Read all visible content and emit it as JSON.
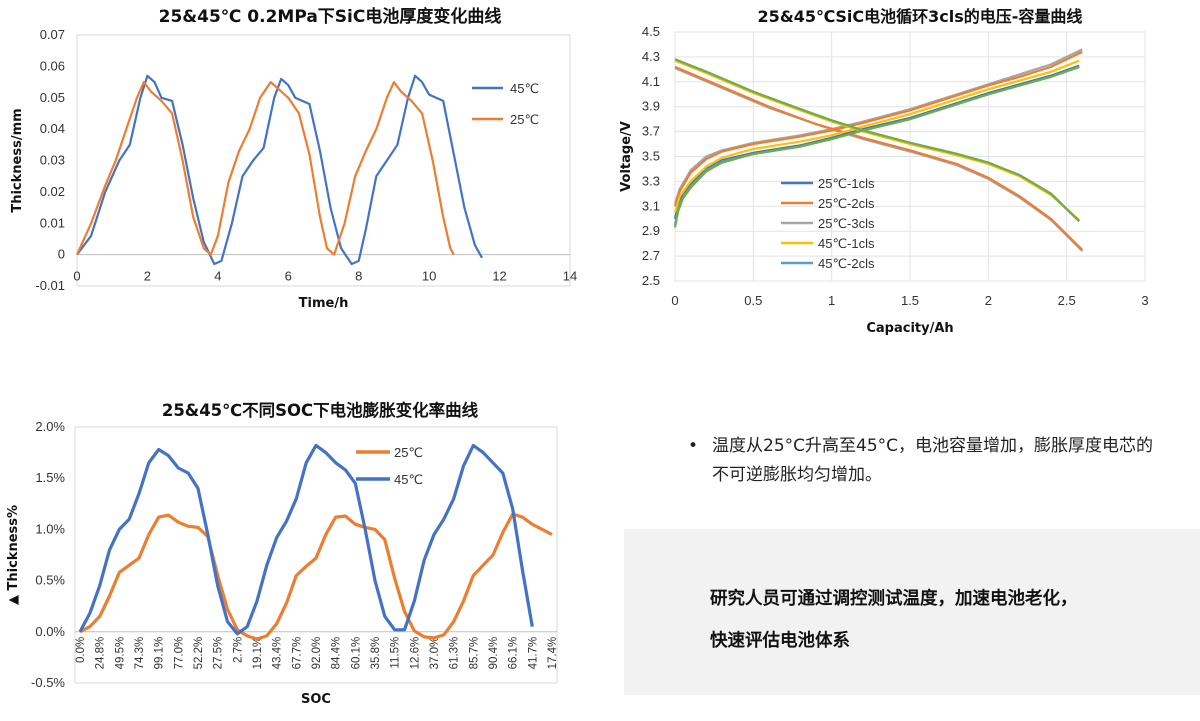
{
  "colors": {
    "blue": "#4472c4",
    "orange": "#ed7d31",
    "gray": "#a5a5a5",
    "yellow": "#ffc000",
    "lightblue": "#5b9bd5",
    "green": "#70ad47"
  },
  "chart_data": [
    {
      "type": "line",
      "title": "25&45℃ 0.2MPa下SiC电池厚度变化曲线",
      "xlabel": "Time/h",
      "ylabel": "Thickness/mm",
      "xlim": [
        0,
        14
      ],
      "ylim": [
        -0.01,
        0.07
      ],
      "xticks": [
        "0",
        "2",
        "4",
        "6",
        "8",
        "10",
        "12",
        "14"
      ],
      "yticks": [
        "-0.01",
        "0",
        "0.01",
        "0.02",
        "0.03",
        "0.04",
        "0.05",
        "0.06",
        "0.07"
      ],
      "legend_position": "right",
      "series": [
        {
          "name": "45℃",
          "color": "#4472c4",
          "x": [
            0,
            0.4,
            0.8,
            1.2,
            1.5,
            1.8,
            2.0,
            2.2,
            2.4,
            2.7,
            3.0,
            3.3,
            3.6,
            3.9,
            4.1,
            4.4,
            4.7,
            5.0,
            5.3,
            5.6,
            5.8,
            6.0,
            6.2,
            6.6,
            6.9,
            7.2,
            7.5,
            7.8,
            8.0,
            8.2,
            8.5,
            8.8,
            9.1,
            9.4,
            9.6,
            9.8,
            10.0,
            10.4,
            10.7,
            11.0,
            11.3,
            11.5
          ],
          "y": [
            0,
            0.006,
            0.02,
            0.03,
            0.035,
            0.05,
            0.057,
            0.055,
            0.05,
            0.049,
            0.035,
            0.018,
            0.004,
            -0.003,
            -0.002,
            0.01,
            0.025,
            0.03,
            0.034,
            0.05,
            0.056,
            0.054,
            0.05,
            0.048,
            0.033,
            0.015,
            0.002,
            -0.003,
            -0.002,
            0.008,
            0.025,
            0.03,
            0.035,
            0.05,
            0.057,
            0.055,
            0.051,
            0.049,
            0.032,
            0.015,
            0.003,
            -0.001
          ]
        },
        {
          "name": "25℃",
          "color": "#ed7d31",
          "x": [
            0,
            0.4,
            0.8,
            1.1,
            1.4,
            1.7,
            1.9,
            2.1,
            2.4,
            2.7,
            3.0,
            3.3,
            3.6,
            3.8,
            4.0,
            4.3,
            4.6,
            4.9,
            5.2,
            5.5,
            5.7,
            6.0,
            6.3,
            6.6,
            6.9,
            7.1,
            7.3,
            7.6,
            7.9,
            8.2,
            8.5,
            8.8,
            9.0,
            9.2,
            9.5,
            9.8,
            10.1,
            10.4,
            10.6,
            10.7
          ],
          "y": [
            0,
            0.01,
            0.022,
            0.03,
            0.04,
            0.05,
            0.055,
            0.052,
            0.049,
            0.045,
            0.03,
            0.012,
            0.002,
            0,
            0.006,
            0.023,
            0.033,
            0.04,
            0.05,
            0.055,
            0.053,
            0.05,
            0.045,
            0.032,
            0.012,
            0.002,
            0,
            0.01,
            0.025,
            0.033,
            0.04,
            0.05,
            0.055,
            0.052,
            0.049,
            0.045,
            0.03,
            0.012,
            0.002,
            0
          ]
        }
      ]
    },
    {
      "type": "line",
      "title": "25&45℃SiC电池循环3cls的电压-容量曲线",
      "xlabel": "Capacity/Ah",
      "ylabel": "Voltage/V",
      "xlim": [
        0,
        3
      ],
      "ylim": [
        2.5,
        4.5
      ],
      "xticks": [
        "0",
        "0.5",
        "1",
        "1.5",
        "2",
        "2.5",
        "3"
      ],
      "yticks": [
        "2.5",
        "2.7",
        "2.9",
        "3.1",
        "3.3",
        "3.5",
        "3.7",
        "3.9",
        "4.1",
        "4.3",
        "4.5"
      ],
      "legend_position": "left-middle",
      "series": [
        {
          "name": "25℃-1cls",
          "color": "#4472c4",
          "charge_x": [
            0,
            0.02,
            0.05,
            0.1,
            0.2,
            0.3,
            0.5,
            0.8,
            1.0,
            1.2,
            1.5,
            1.8,
            2.0,
            2.2,
            2.4,
            2.58
          ],
          "charge_y": [
            3.0,
            3.12,
            3.2,
            3.28,
            3.4,
            3.47,
            3.53,
            3.59,
            3.65,
            3.72,
            3.81,
            3.93,
            4.01,
            4.08,
            4.15,
            4.23
          ],
          "discharge_x": [
            0,
            0.2,
            0.5,
            0.8,
            1.0,
            1.2,
            1.5,
            1.8,
            2.0,
            2.2,
            2.4,
            2.58
          ],
          "discharge_y": [
            4.28,
            4.18,
            4.02,
            3.88,
            3.79,
            3.71,
            3.61,
            3.52,
            3.45,
            3.35,
            3.2,
            2.98
          ]
        },
        {
          "name": "25℃-2cls",
          "color": "#ed7d31",
          "charge_x": [
            0,
            0.03,
            0.1,
            0.2,
            0.3,
            0.5,
            0.8,
            1.0,
            1.2,
            1.5,
            1.8,
            2.0,
            2.2,
            2.4,
            2.6
          ],
          "charge_y": [
            3.1,
            3.22,
            3.37,
            3.48,
            3.54,
            3.6,
            3.66,
            3.71,
            3.77,
            3.87,
            3.99,
            4.07,
            4.14,
            4.22,
            4.34
          ],
          "discharge_x": [
            0,
            0.3,
            0.6,
            0.9,
            1.2,
            1.5,
            1.8,
            2.0,
            2.2,
            2.4,
            2.6
          ],
          "discharge_y": [
            4.22,
            4.06,
            3.9,
            3.76,
            3.65,
            3.55,
            3.44,
            3.33,
            3.18,
            3.0,
            2.75
          ]
        },
        {
          "name": "25℃-3cls",
          "color": "#a5a5a5",
          "charge_x": [
            0,
            0.03,
            0.1,
            0.2,
            0.3,
            0.5,
            0.8,
            1.0,
            1.2,
            1.5,
            1.8,
            2.0,
            2.2,
            2.4,
            2.6
          ],
          "charge_y": [
            3.12,
            3.24,
            3.39,
            3.5,
            3.55,
            3.61,
            3.67,
            3.72,
            3.78,
            3.88,
            4.0,
            4.08,
            4.16,
            4.24,
            4.36
          ],
          "discharge_x": [
            0,
            0.3,
            0.6,
            0.9,
            1.2,
            1.5,
            1.8,
            2.0,
            2.2,
            2.4,
            2.6
          ],
          "discharge_y": [
            4.21,
            4.05,
            3.89,
            3.76,
            3.64,
            3.54,
            3.43,
            3.32,
            3.17,
            2.99,
            2.74
          ]
        },
        {
          "name": "45℃-1cls",
          "color": "#ffc000",
          "charge_x": [
            0,
            0.03,
            0.1,
            0.2,
            0.3,
            0.5,
            0.8,
            1.0,
            1.2,
            1.5,
            1.8,
            2.0,
            2.2,
            2.4,
            2.58
          ],
          "charge_y": [
            3.05,
            3.18,
            3.3,
            3.42,
            3.49,
            3.56,
            3.62,
            3.67,
            3.74,
            3.84,
            3.96,
            4.04,
            4.11,
            4.18,
            4.27
          ],
          "discharge_x": [
            0,
            0.2,
            0.5,
            0.8,
            1.0,
            1.2,
            1.5,
            1.8,
            2.0,
            2.2,
            2.4,
            2.58
          ],
          "discharge_y": [
            4.27,
            4.17,
            4.01,
            3.87,
            3.78,
            3.7,
            3.6,
            3.51,
            3.44,
            3.34,
            3.19,
            2.99
          ]
        },
        {
          "name": "45℃-2cls",
          "color": "#5b9bd5",
          "charge_x": [
            0,
            0.02,
            0.05,
            0.1,
            0.2,
            0.3,
            0.5,
            0.8,
            1.0,
            1.2,
            1.5,
            1.8,
            2.0,
            2.2,
            2.4,
            2.58
          ],
          "charge_y": [
            2.95,
            3.08,
            3.17,
            3.26,
            3.39,
            3.46,
            3.52,
            3.58,
            3.64,
            3.71,
            3.8,
            3.92,
            4.0,
            4.07,
            4.14,
            4.22
          ],
          "discharge_x": [
            0,
            0.2,
            0.5,
            0.8,
            1.0,
            1.2,
            1.5,
            1.8,
            2.0,
            2.2,
            2.4,
            2.58
          ],
          "discharge_y": [
            4.28,
            4.18,
            4.02,
            3.88,
            3.79,
            3.71,
            3.61,
            3.52,
            3.45,
            3.35,
            3.2,
            2.98
          ]
        },
        {
          "color": "#70ad47",
          "charge_x": [
            0,
            0.02,
            0.05,
            0.1,
            0.2,
            0.3,
            0.5,
            0.8,
            1.0,
            1.2,
            1.5,
            1.8,
            2.0,
            2.2,
            2.4,
            2.58
          ],
          "charge_y": [
            2.93,
            3.06,
            3.16,
            3.25,
            3.38,
            3.45,
            3.52,
            3.58,
            3.64,
            3.71,
            3.8,
            3.92,
            4.0,
            4.07,
            4.14,
            4.22
          ],
          "discharge_x": [
            0,
            0.2,
            0.5,
            0.8,
            1.0,
            1.2,
            1.5,
            1.8,
            2.0,
            2.2,
            2.4,
            2.58
          ],
          "discharge_y": [
            4.28,
            4.18,
            4.02,
            3.88,
            3.79,
            3.71,
            3.61,
            3.52,
            3.45,
            3.35,
            3.2,
            2.98
          ]
        }
      ]
    },
    {
      "type": "line",
      "title": "25&45℃不同SOC下电池膨胀变化率曲线",
      "xlabel": "SOC",
      "ylabel": "▲ Thickness%",
      "ylim": [
        -0.5,
        2.0
      ],
      "yticks": [
        "-0.5%",
        "0.0%",
        "0.5%",
        "1.0%",
        "1.5%",
        "2.0%"
      ],
      "categories": [
        "0.0%",
        "24.8%",
        "49.5%",
        "74.3%",
        "99.1%",
        "77.0%",
        "52.2%",
        "27.5%",
        "2.7%",
        "19.1%",
        "43.4%",
        "67.7%",
        "92.0%",
        "84.4%",
        "60.1%",
        "35.8%",
        "11.5%",
        "12.6%",
        "37.0%",
        "61.3%",
        "85.7%",
        "90.4%",
        "66.1%",
        "41.7%",
        "17.4%"
      ],
      "legend_position": "top-right",
      "series": [
        {
          "name": "25℃",
          "color": "#ed7d31",
          "x": [
            0,
            0.5,
            1,
            1.5,
            2,
            2.5,
            3,
            3.5,
            4,
            4.5,
            5,
            5.5,
            6,
            6.5,
            7,
            7.5,
            8,
            8.5,
            9,
            9.5,
            10,
            10.5,
            11,
            11.5,
            12,
            12.5,
            13,
            13.5,
            14,
            14.5,
            15,
            15.5,
            16,
            16.5,
            17,
            17.5,
            18,
            18.5,
            19,
            19.5,
            20,
            20.5,
            21,
            21.5,
            22,
            22.5,
            23,
            23.5,
            24
          ],
          "y": [
            0,
            0.05,
            0.15,
            0.35,
            0.58,
            0.65,
            0.72,
            0.95,
            1.12,
            1.14,
            1.07,
            1.03,
            1.02,
            0.93,
            0.55,
            0.22,
            0.02,
            -0.04,
            -0.07,
            -0.04,
            0.08,
            0.28,
            0.55,
            0.64,
            0.72,
            0.95,
            1.12,
            1.13,
            1.05,
            1.02,
            1.0,
            0.9,
            0.52,
            0.2,
            0.01,
            -0.05,
            -0.06,
            -0.03,
            0.1,
            0.3,
            0.55,
            0.65,
            0.75,
            0.97,
            1.15,
            1.12,
            1.05,
            1.0,
            0.95
          ]
        },
        {
          "name": "45℃",
          "color": "#4472c4",
          "x": [
            0,
            0.5,
            1,
            1.5,
            2,
            2.5,
            3,
            3.5,
            4,
            4.5,
            5,
            5.5,
            6,
            6.5,
            7,
            7.5,
            8,
            8.5,
            9,
            9.5,
            10,
            10.5,
            11,
            11.5,
            12,
            12.5,
            13,
            13.5,
            14,
            14.5,
            15,
            15.5,
            16,
            16.5,
            17,
            17.5,
            18,
            18.5,
            19,
            19.5,
            20,
            20.5,
            21,
            21.5,
            22,
            22.5,
            23
          ],
          "y": [
            0,
            0.18,
            0.45,
            0.8,
            1.0,
            1.1,
            1.35,
            1.65,
            1.78,
            1.72,
            1.6,
            1.55,
            1.4,
            0.95,
            0.45,
            0.1,
            -0.02,
            0.05,
            0.3,
            0.65,
            0.92,
            1.08,
            1.3,
            1.65,
            1.82,
            1.75,
            1.65,
            1.58,
            1.45,
            1.0,
            0.5,
            0.15,
            0.02,
            0.02,
            0.3,
            0.7,
            0.95,
            1.1,
            1.3,
            1.62,
            1.82,
            1.75,
            1.65,
            1.55,
            1.2,
            0.6,
            0.05
          ]
        }
      ]
    }
  ],
  "bullet": {
    "symbol": "•",
    "text": "温度从25°C升高至45°C，电池容量增加，膨胀厚度电芯的不可逆膨胀均匀增加。"
  },
  "note": {
    "line1": "研究人员可通过调控测试温度，加速电池老化，",
    "line2": "快速评估电池体系"
  }
}
